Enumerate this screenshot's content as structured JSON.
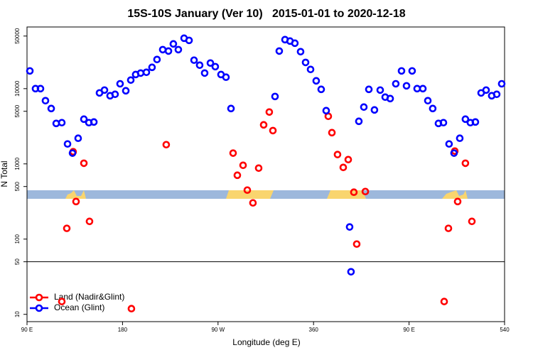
{
  "chart_data": {
    "type": "scatter",
    "title": "15S-10S January (Ver 10)   2015-01-01 to 2020-12-18",
    "x_label": "Longitude (deg E)",
    "y_label": "N Total",
    "log_y": true,
    "legend": "bottomleft",
    "xlim": [
      90,
      540
    ],
    "ylim": [
      8,
      66000
    ],
    "xticks": [
      {
        "value": 90,
        "label": "90 E"
      },
      180,
      {
        "value": 270,
        "label": "90 W"
      },
      360,
      {
        "value": 450,
        "label": "90 E"
      },
      540
    ],
    "yticks": [
      10,
      50,
      100,
      500,
      1000,
      5000,
      10000,
      50000
    ],
    "hline": 50,
    "series": [
      {
        "name": "Land (Nadir&Glint)",
        "color": "#ff0000",
        "x": [
          127.5,
          122.8,
          133.5,
          136.2,
          143.6,
          148.9,
          188.4,
          221.2,
          284.2,
          288.2,
          293.6,
          297.6,
          302.9,
          308.3,
          313.0,
          318.3,
          321.7,
          373.9,
          377.3,
          382.6,
          388.0,
          392.7,
          398.0,
          400.7,
          408.8,
          483.1,
          487.1,
          493.1,
          495.8,
          503.1,
          509.2
        ],
        "values": [
          139,
          14.8,
          1450,
          316,
          1020,
          172,
          11.9,
          1800,
          1390,
          706,
          958,
          448,
          303,
          878,
          3300,
          4890,
          2770,
          4290,
          2600,
          1330,
          897,
          1140,
          420,
          85.9,
          429,
          14.8,
          139,
          1480,
          316,
          1020,
          172
        ]
      },
      {
        "name": "Ocean (Glint)",
        "color": "#0000ff",
        "x": [
          92.7,
          98.0,
          102.7,
          107.4,
          112.8,
          117.5,
          122.8,
          128.2,
          132.9,
          138.2,
          143.6,
          148.3,
          153.0,
          158.3,
          163.0,
          168.3,
          173.0,
          177.7,
          183.1,
          187.8,
          192.4,
          197.1,
          202.5,
          207.8,
          212.5,
          217.9,
          223.3,
          227.9,
          232.6,
          238.0,
          242.7,
          247.4,
          252.7,
          257.4,
          262.8,
          267.4,
          272.8,
          277.5,
          282.2,
          323.7,
          327.7,
          333.1,
          337.8,
          342.4,
          347.8,
          352.5,
          357.2,
          362.5,
          367.2,
          371.9,
          394.0,
          395.3,
          402.7,
          407.4,
          412.1,
          417.4,
          422.8,
          427.5,
          432.2,
          437.5,
          442.9,
          447.6,
          452.9,
          457.6,
          463.0,
          467.7,
          472.3,
          477.7,
          482.4,
          487.7,
          492.4,
          497.8,
          503.1,
          507.8,
          512.5,
          517.9,
          522.6,
          527.9,
          532.6,
          537.3
        ],
        "values": [
          17200,
          10000,
          10000,
          6920,
          5440,
          3450,
          3530,
          1840,
          1390,
          2190,
          3930,
          3530,
          3600,
          8770,
          9570,
          8050,
          8410,
          11600,
          9370,
          13000,
          15400,
          16100,
          16500,
          19200,
          24400,
          33000,
          31600,
          39300,
          33000,
          46800,
          43800,
          23900,
          20500,
          16100,
          21900,
          19600,
          15400,
          14200,
          5440,
          7870,
          31600,
          44800,
          42900,
          40200,
          31000,
          22300,
          18000,
          12700,
          9790,
          5100,
          145,
          36.8,
          3680,
          5690,
          9790,
          5210,
          9570,
          7710,
          7380,
          11600,
          17200,
          10900,
          17200,
          10000,
          10000,
          6920,
          5440,
          3450,
          3530,
          1840,
          1390,
          2190,
          3930,
          3530,
          3600,
          8770,
          9570,
          8050,
          8410,
          11600
        ]
      }
    ]
  }
}
